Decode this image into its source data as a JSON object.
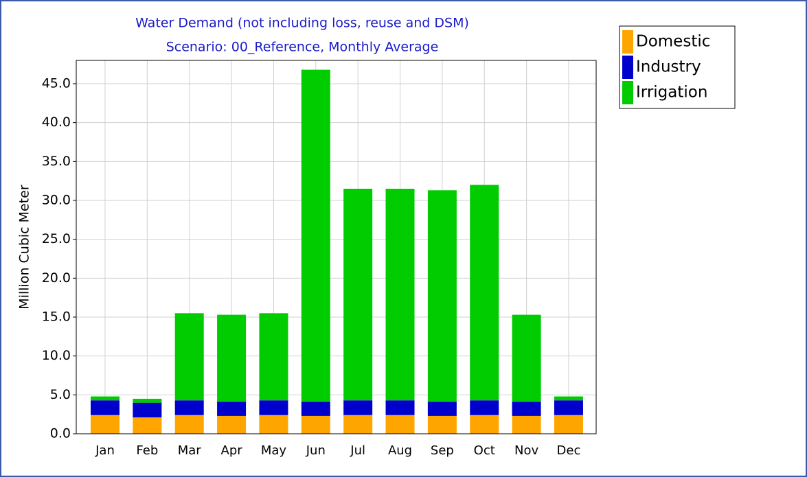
{
  "chart_data": {
    "type": "stacked_bar",
    "title": "Water Demand (not including loss, reuse and DSM)",
    "subtitle": "Scenario: 00_Reference,  Monthly Average",
    "y_label": "Million Cubic Meter",
    "categories": [
      "Jan",
      "Feb",
      "Mar",
      "Apr",
      "May",
      "Jun",
      "Jul",
      "Aug",
      "Sep",
      "Oct",
      "Nov",
      "Dec"
    ],
    "series": [
      {
        "name": "Domestic",
        "color": "#ffa500",
        "values": [
          2.4,
          2.1,
          2.4,
          2.3,
          2.4,
          2.3,
          2.4,
          2.4,
          2.3,
          2.4,
          2.3,
          2.4
        ]
      },
      {
        "name": "Industry",
        "color": "#0000cc",
        "values": [
          1.9,
          1.9,
          1.9,
          1.8,
          1.9,
          1.8,
          1.9,
          1.9,
          1.8,
          1.9,
          1.8,
          1.9
        ]
      },
      {
        "name": "Irrigation",
        "color": "#00cc00",
        "values": [
          0.5,
          0.5,
          11.2,
          11.2,
          11.2,
          42.7,
          27.2,
          27.2,
          27.2,
          27.7,
          11.2,
          0.5
        ]
      }
    ],
    "ylim": [
      0,
      48
    ],
    "yticks": [
      {
        "value": 0,
        "label": "0.0"
      },
      {
        "value": 5,
        "label": "5.0"
      },
      {
        "value": 10,
        "label": "10.0"
      },
      {
        "value": 15,
        "label": "15.0"
      },
      {
        "value": 20,
        "label": "20.0"
      },
      {
        "value": 25,
        "label": "25.0"
      },
      {
        "value": 30,
        "label": "30.0"
      },
      {
        "value": 35,
        "label": "35.0"
      },
      {
        "value": 40,
        "label": "40.0"
      },
      {
        "value": 45,
        "label": "45.0"
      }
    ],
    "grid": true,
    "legend_position": "upper right"
  }
}
